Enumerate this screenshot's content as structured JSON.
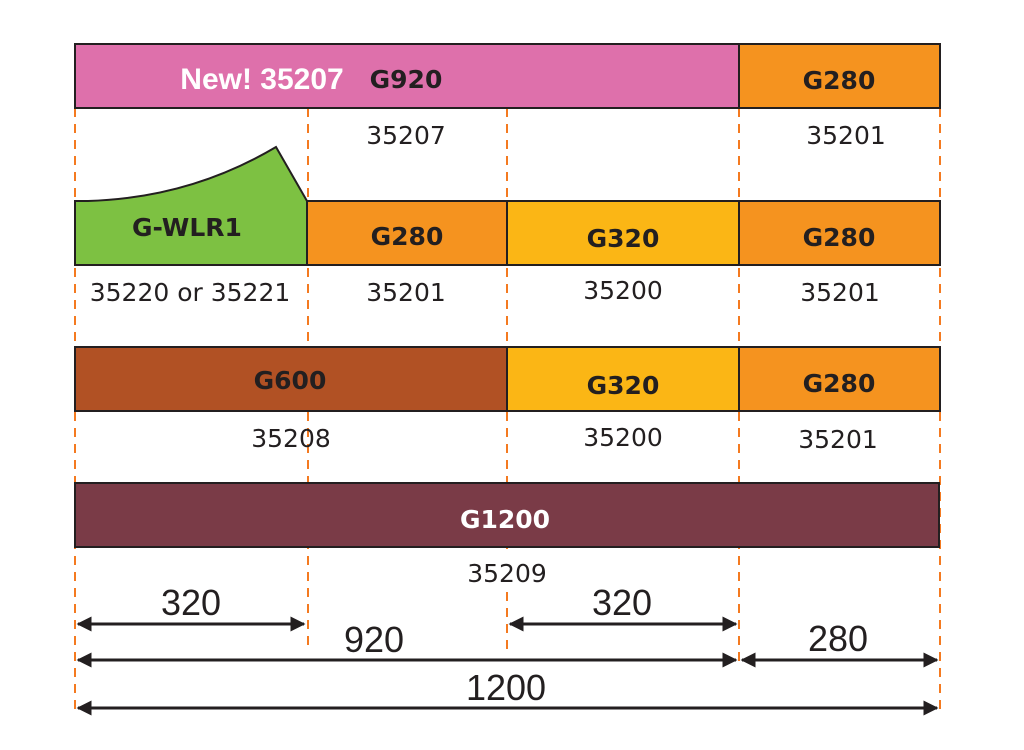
{
  "colors": {
    "g920": "#de70ab",
    "g280": "#f5931f",
    "g320": "#fbb615",
    "gwlr1": "#7dc142",
    "g600": "#b15124",
    "g1200": "#7a3b47",
    "guide": "#f47a20"
  },
  "rows": [
    {
      "segments": [
        {
          "label": "G920",
          "badge": "New! 35207",
          "part": "35207"
        },
        {
          "label": "G280",
          "part": "35201"
        }
      ]
    },
    {
      "segments": [
        {
          "label": "G-WLR1",
          "part": "35220 or 35221"
        },
        {
          "label": "G280",
          "part": "35201"
        },
        {
          "label": "G320",
          "part": "35200"
        },
        {
          "label": "G280",
          "part": "35201"
        }
      ]
    },
    {
      "segments": [
        {
          "label": "G600",
          "part": "35208"
        },
        {
          "label": "G320",
          "part": "35200"
        },
        {
          "label": "G280",
          "part": "35201"
        }
      ]
    },
    {
      "segments": [
        {
          "label": "G1200",
          "part": "35209"
        }
      ]
    }
  ],
  "dimensions": {
    "left_320": "320",
    "right_320": "320",
    "d920": "920",
    "d280": "280",
    "d1200": "1200"
  }
}
